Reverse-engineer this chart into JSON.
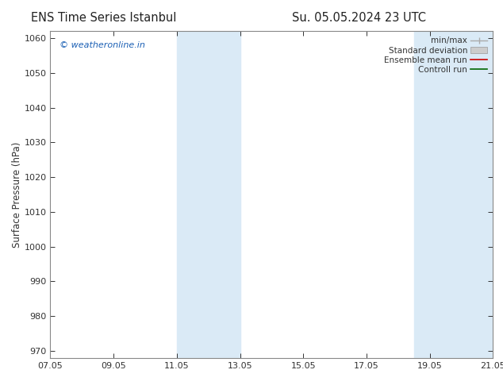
{
  "title_left": "ENS Time Series Istanbul",
  "title_right": "Su. 05.05.2024 23 UTC",
  "ylabel": "Surface Pressure (hPa)",
  "ylim": [
    968,
    1062
  ],
  "yticks": [
    970,
    980,
    990,
    1000,
    1010,
    1020,
    1030,
    1040,
    1050,
    1060
  ],
  "xtick_labels": [
    "07.05",
    "09.05",
    "11.05",
    "13.05",
    "15.05",
    "17.05",
    "19.05",
    "21.05"
  ],
  "xtick_positions": [
    0,
    2,
    4,
    6,
    8,
    10,
    12,
    14
  ],
  "shade_bands": [
    {
      "x_start": 4.0,
      "x_end": 6.0
    },
    {
      "x_start": 11.5,
      "x_end": 14.0
    }
  ],
  "shade_color": "#daeaf6",
  "watermark": "© weatheronline.in",
  "watermark_color": "#1a5fb4",
  "bg_color": "#ffffff",
  "plot_bg_color": "#ffffff",
  "spine_color": "#888888",
  "tick_color": "#333333",
  "title_fontsize": 10.5,
  "label_fontsize": 8.5,
  "tick_fontsize": 8,
  "legend_fontsize": 7.5,
  "watermark_fontsize": 8
}
